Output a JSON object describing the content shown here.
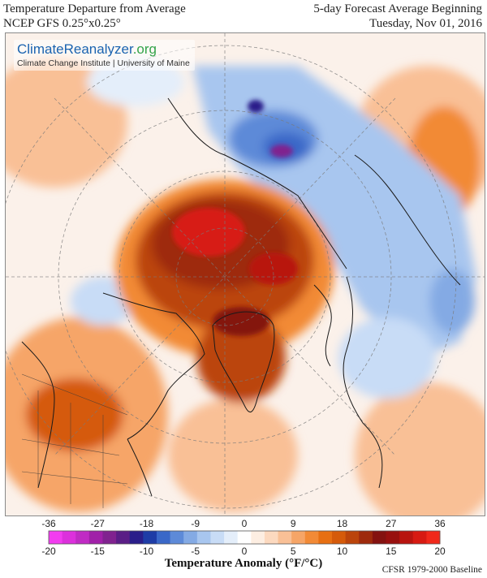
{
  "header": {
    "title": "Temperature Departure from Average",
    "model": "NCEP GFS 0.25°x0.25°",
    "forecast_label": "5-day Forecast Average Beginning",
    "date": "Tuesday, Nov 01, 2016"
  },
  "logo": {
    "name_main": "ClimateReanalyzer",
    "name_suffix": ".org",
    "subtitle": "Climate Change Institute | University of Maine"
  },
  "legend": {
    "f_ticks": [
      "-36",
      "-27",
      "-18",
      "-9",
      "0",
      "9",
      "18",
      "27",
      "36"
    ],
    "c_ticks": [
      "-20",
      "-15",
      "-10",
      "-5",
      "0",
      "5",
      "10",
      "15",
      "20"
    ],
    "colors": [
      "#f23cf0",
      "#dc30dc",
      "#c02bc4",
      "#a020a8",
      "#80228f",
      "#5a1e86",
      "#2a1e8a",
      "#1e3ca6",
      "#3a68c8",
      "#5d8ad8",
      "#84aae4",
      "#a8c6ef",
      "#c8dcf6",
      "#e4eefa",
      "#ffffff",
      "#fdeee2",
      "#fcd9bf",
      "#f9c096",
      "#f6a567",
      "#f28a36",
      "#e76f12",
      "#d55a0a",
      "#bb440b",
      "#9e2a0c",
      "#841210",
      "#98100f",
      "#b8140f",
      "#d71a12",
      "#f0281a"
    ],
    "axis_label": "Temperature Anomaly (°F/°C)",
    "baseline": "CFSR 1979-2000 Baseline"
  },
  "map_colors": {
    "background_warm": "#fbf1ea",
    "light_orange": "#f9c096",
    "orange": "#f28a36",
    "dark_orange": "#d55a0a",
    "brown": "#9e2a0c",
    "dark_red": "#841210",
    "red": "#d71a12",
    "light_blue": "#c8dcf6",
    "blue": "#84aae4",
    "mid_blue": "#3a68c8",
    "dark_blue": "#2a1e8a",
    "purple": "#80228f",
    "coast": "#1a1a1a",
    "grid": "#7a7a7a"
  }
}
